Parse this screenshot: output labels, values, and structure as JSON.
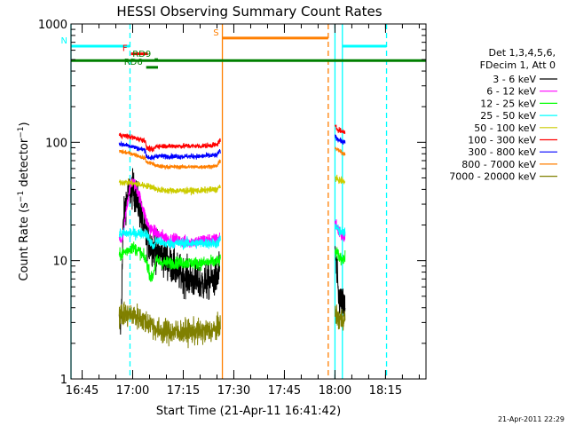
{
  "chart_data": {
    "type": "line",
    "title": "HESSI Observing Summary Count Rates",
    "xlabel": "Start Time (21-Apr-11 16:41:42)",
    "ylabel": "Count Rate (s⁻¹ detector⁻¹)",
    "ylabel_parts": {
      "main": "Count Rate (s",
      "exp1": "−1",
      "mid": " detector",
      "exp2": "−1",
      "end": ")"
    },
    "yscale": "log",
    "ylim": [
      1,
      1000
    ],
    "xlim_min": [
      1001.7,
      1107.0
    ],
    "xtick_labels": [
      "16:45",
      "17:00",
      "17:15",
      "17:30",
      "17:45",
      "18:00",
      "18:15"
    ],
    "xtick_min": [
      1005,
      1020,
      1035,
      1050,
      1065,
      1080,
      1095
    ],
    "ytick_labels": [
      "1",
      "10",
      "100",
      "1000"
    ],
    "ytick_values": [
      1,
      10,
      100,
      1000
    ],
    "legend_header": [
      "Det 1,3,4,5,6,",
      "FDecim 1, Att 0"
    ],
    "legend_position": "right, outside plot",
    "footer": "21-Apr-2011 22:29",
    "series": [
      {
        "name": "3 - 6 keV",
        "color": "#000000",
        "sigma": 0.18,
        "points": [
          [
            1016.0,
            2.9
          ],
          [
            1016.5,
            2.9
          ],
          [
            1017.2,
            20
          ],
          [
            1018,
            32
          ],
          [
            1019,
            38
          ],
          [
            1020,
            40
          ],
          [
            1021,
            35
          ],
          [
            1022,
            28
          ],
          [
            1023,
            20
          ],
          [
            1024,
            16
          ],
          [
            1025,
            14
          ],
          [
            1027,
            12
          ],
          [
            1029,
            11
          ],
          [
            1031,
            9.5
          ],
          [
            1033,
            8.2
          ],
          [
            1035,
            7.5
          ],
          [
            1037,
            7.0
          ],
          [
            1039,
            6.6
          ],
          [
            1041,
            6.4
          ],
          [
            1043,
            6.8
          ],
          [
            1045,
            7.2
          ],
          [
            1045.8,
            9.0
          ],
          [
            1046.5,
            null
          ],
          [
            1079.8,
            null
          ],
          [
            1080.0,
            14
          ],
          [
            1080.5,
            8
          ],
          [
            1081,
            5
          ],
          [
            1082,
            4.2
          ],
          [
            1083,
            3.8
          ]
        ]
      },
      {
        "name": "6 - 12 keV",
        "color": "#ff00ff",
        "sigma": 0.06,
        "points": [
          [
            1016.0,
            15
          ],
          [
            1017,
            15
          ],
          [
            1018,
            25
          ],
          [
            1019,
            40
          ],
          [
            1020,
            47
          ],
          [
            1021,
            42
          ],
          [
            1022,
            35
          ],
          [
            1023,
            28
          ],
          [
            1024,
            22
          ],
          [
            1025,
            19
          ],
          [
            1027,
            17
          ],
          [
            1029,
            16
          ],
          [
            1031,
            15
          ],
          [
            1033,
            15
          ],
          [
            1035,
            14.5
          ],
          [
            1037,
            14.5
          ],
          [
            1039,
            14.5
          ],
          [
            1041,
            15
          ],
          [
            1043,
            15
          ],
          [
            1045,
            15
          ],
          [
            1045.8,
            16
          ],
          [
            1046.5,
            null
          ],
          [
            1079.8,
            null
          ],
          [
            1080.0,
            22
          ],
          [
            1081,
            18
          ],
          [
            1082,
            16
          ],
          [
            1083,
            15.5
          ]
        ]
      },
      {
        "name": "12 - 25 keV",
        "color": "#00ff00",
        "sigma": 0.06,
        "points": [
          [
            1016.0,
            11
          ],
          [
            1018,
            12
          ],
          [
            1020,
            13
          ],
          [
            1022,
            12
          ],
          [
            1024,
            10
          ],
          [
            1025.5,
            7
          ],
          [
            1026,
            7.5
          ],
          [
            1027,
            10
          ],
          [
            1029,
            9.6
          ],
          [
            1031,
            9.6
          ],
          [
            1035,
            9.6
          ],
          [
            1040,
            9.5
          ],
          [
            1045,
            9.8
          ],
          [
            1046,
            10
          ],
          [
            1046.5,
            null
          ],
          [
            1079.8,
            null
          ],
          [
            1080.0,
            12
          ],
          [
            1081,
            11
          ],
          [
            1082,
            10.5
          ],
          [
            1083,
            10.3
          ]
        ]
      },
      {
        "name": "25 - 50 keV",
        "color": "#00ffff",
        "sigma": 0.05,
        "points": [
          [
            1016.0,
            17
          ],
          [
            1018,
            17
          ],
          [
            1020,
            17
          ],
          [
            1022,
            17
          ],
          [
            1024,
            17
          ],
          [
            1025.5,
            14
          ],
          [
            1026.3,
            13
          ],
          [
            1027,
            15
          ],
          [
            1029,
            14
          ],
          [
            1031,
            14
          ],
          [
            1035,
            14
          ],
          [
            1040,
            14
          ],
          [
            1045,
            14
          ],
          [
            1046,
            15
          ],
          [
            1046.5,
            null
          ],
          [
            1079.8,
            null
          ],
          [
            1080.0,
            20
          ],
          [
            1081,
            18
          ],
          [
            1082,
            17.5
          ],
          [
            1083,
            17
          ]
        ]
      },
      {
        "name": "50 - 100 keV",
        "color": "#cccc00",
        "sigma": 0.03,
        "points": [
          [
            1016.0,
            46
          ],
          [
            1018,
            46
          ],
          [
            1020,
            45
          ],
          [
            1022,
            44
          ],
          [
            1024,
            43
          ],
          [
            1026,
            42
          ],
          [
            1027,
            40
          ],
          [
            1030,
            39
          ],
          [
            1035,
            39
          ],
          [
            1040,
            39
          ],
          [
            1045,
            40
          ],
          [
            1046,
            43
          ],
          [
            1046.5,
            null
          ],
          [
            1079.8,
            null
          ],
          [
            1080.0,
            50
          ],
          [
            1081,
            48
          ],
          [
            1082,
            47
          ],
          [
            1083,
            46
          ]
        ]
      },
      {
        "name": "100 - 300 keV",
        "color": "#ff0000",
        "sigma": 0.025,
        "points": [
          [
            1016.0,
            115
          ],
          [
            1018,
            113
          ],
          [
            1020,
            110
          ],
          [
            1022,
            106
          ],
          [
            1023.8,
            104
          ],
          [
            1024,
            90
          ],
          [
            1026,
            86
          ],
          [
            1027,
            93
          ],
          [
            1030,
            93
          ],
          [
            1035,
            93
          ],
          [
            1040,
            93
          ],
          [
            1045,
            95
          ],
          [
            1046,
            105
          ],
          [
            1046.5,
            null
          ],
          [
            1079.8,
            null
          ],
          [
            1080.0,
            135
          ],
          [
            1081,
            128
          ],
          [
            1082,
            124
          ],
          [
            1083,
            122
          ]
        ]
      },
      {
        "name": "300 - 800 keV",
        "color": "#0000ff",
        "sigma": 0.025,
        "points": [
          [
            1016.0,
            97
          ],
          [
            1018,
            95
          ],
          [
            1020,
            92
          ],
          [
            1022,
            88
          ],
          [
            1023.8,
            86
          ],
          [
            1024,
            76
          ],
          [
            1026,
            73
          ],
          [
            1027,
            77
          ],
          [
            1030,
            76
          ],
          [
            1035,
            76
          ],
          [
            1040,
            76
          ],
          [
            1045,
            78
          ],
          [
            1046,
            86
          ],
          [
            1046.5,
            null
          ],
          [
            1079.8,
            null
          ],
          [
            1080.0,
            112
          ],
          [
            1081,
            105
          ],
          [
            1082,
            102
          ],
          [
            1083,
            100
          ]
        ]
      },
      {
        "name": "800 - 7000 keV",
        "color": "#ff7f00",
        "sigma": 0.02,
        "points": [
          [
            1016.0,
            84
          ],
          [
            1018,
            82
          ],
          [
            1020,
            80
          ],
          [
            1022,
            76
          ],
          [
            1023.8,
            73
          ],
          [
            1024,
            68
          ],
          [
            1026,
            66
          ],
          [
            1027,
            63
          ],
          [
            1030,
            62
          ],
          [
            1035,
            62
          ],
          [
            1040,
            62
          ],
          [
            1045,
            63
          ],
          [
            1046,
            70
          ],
          [
            1046.5,
            null
          ],
          [
            1079.8,
            null
          ],
          [
            1080.0,
            90
          ],
          [
            1081,
            85
          ],
          [
            1082,
            82
          ],
          [
            1083,
            80
          ]
        ]
      },
      {
        "name": "7000 - 20000 keV",
        "color": "#808000",
        "sigma": 0.12,
        "points": [
          [
            1016.0,
            3.5
          ],
          [
            1018,
            3.5
          ],
          [
            1020,
            3.5
          ],
          [
            1022,
            3.3
          ],
          [
            1024,
            3.0
          ],
          [
            1026,
            2.9
          ],
          [
            1027,
            2.6
          ],
          [
            1030,
            2.5
          ],
          [
            1035,
            2.5
          ],
          [
            1040,
            2.5
          ],
          [
            1045,
            2.6
          ],
          [
            1046,
            3.0
          ],
          [
            1046.5,
            null
          ],
          [
            1079.8,
            null
          ],
          [
            1080.0,
            3.5
          ],
          [
            1081,
            3.3
          ],
          [
            1082,
            3.2
          ],
          [
            1083,
            3.2
          ]
        ]
      }
    ],
    "flags": [
      {
        "label": "N",
        "color": "#00ffff",
        "y": 650,
        "x_ranges_min": [
          [
            1001.7,
            1019.2
          ],
          [
            1082.2,
            1095.3
          ]
        ]
      },
      {
        "label": "S",
        "color": "#ff7f00",
        "y": 760,
        "x_ranges_min": [
          [
            1046.6,
            1078.0
          ]
        ]
      },
      {
        "label": "F",
        "color": "#ff0000",
        "y": 560,
        "x_ranges_min": [
          [
            1019.5,
            1024.5
          ]
        ]
      },
      {
        "label": "RD9",
        "color": "#008000",
        "y": 500,
        "x_ranges_min": [
          [
            1026.5,
            1027.5
          ]
        ]
      },
      {
        "label": "RD6",
        "color": "#008000",
        "y": 430,
        "x_ranges_min": [
          [
            1024.0,
            1027.5
          ]
        ]
      },
      {
        "label": "",
        "color": "#008000",
        "y": 490,
        "x_ranges_min": [
          [
            1001.7,
            1107.0
          ]
        ]
      }
    ],
    "vertical_markers": [
      {
        "x_min": 1001.7,
        "color": "#00ffff",
        "style": "solid"
      },
      {
        "x_min": 1019.2,
        "color": "#00ffff",
        "style": "dashed"
      },
      {
        "x_min": 1046.6,
        "color": "#ff7f00",
        "style": "solid"
      },
      {
        "x_min": 1078.0,
        "color": "#ff7f00",
        "style": "dashed"
      },
      {
        "x_min": 1080.0,
        "color": "#00ffff",
        "style": "solid"
      },
      {
        "x_min": 1082.2,
        "color": "#00ffff",
        "style": "solid"
      },
      {
        "x_min": 1095.3,
        "color": "#00ffff",
        "style": "dashed"
      }
    ]
  }
}
